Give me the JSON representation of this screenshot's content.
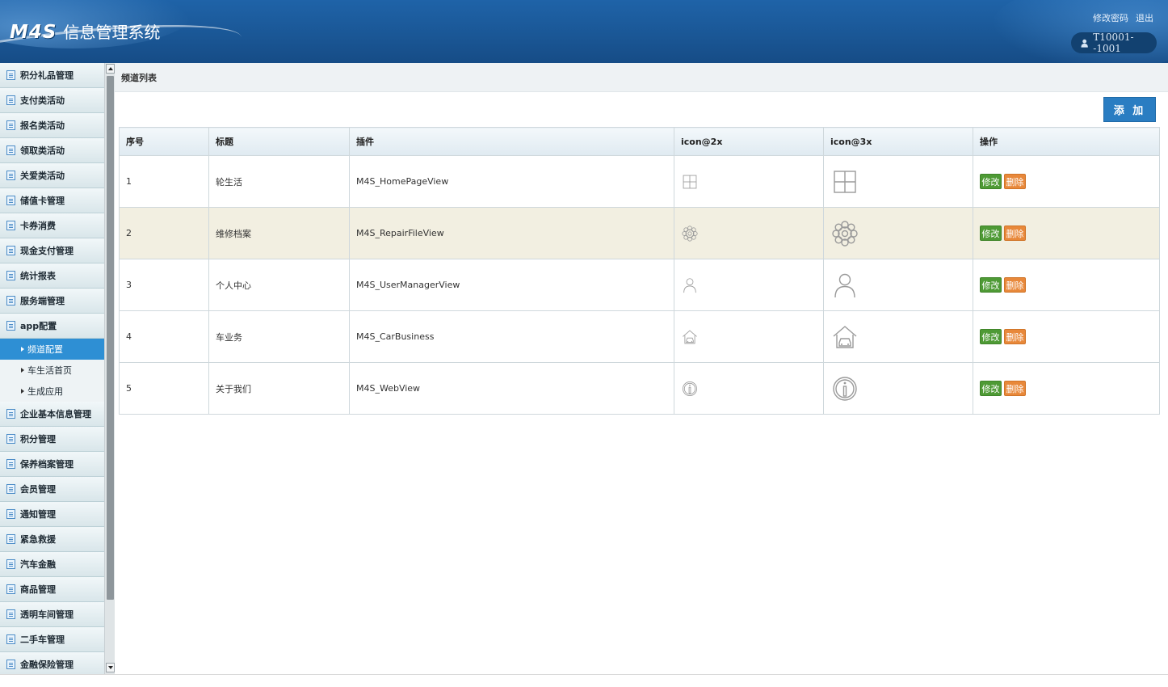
{
  "header": {
    "logo_brand": "M4S",
    "logo_title": "信息管理系统",
    "change_password": "修改密码",
    "logout": "退出",
    "user": "T10001--1001"
  },
  "sidebar": {
    "items_top": [
      {
        "label": "积分礼品管理"
      },
      {
        "label": "支付类活动"
      },
      {
        "label": "报名类活动"
      },
      {
        "label": "领取类活动"
      },
      {
        "label": "关爱类活动"
      },
      {
        "label": "储值卡管理"
      },
      {
        "label": "卡券消费"
      },
      {
        "label": "现金支付管理"
      },
      {
        "label": "统计报表"
      },
      {
        "label": "服务端管理"
      },
      {
        "label": "app配置"
      }
    ],
    "sub_items": [
      {
        "label": "频道配置",
        "active": true
      },
      {
        "label": "车生活首页",
        "active": false
      },
      {
        "label": "生成应用",
        "active": false
      }
    ],
    "items_bottom": [
      {
        "label": "企业基本信息管理"
      },
      {
        "label": "积分管理"
      },
      {
        "label": "保养档案管理"
      },
      {
        "label": "会员管理"
      },
      {
        "label": "通知管理"
      },
      {
        "label": "紧急救援"
      },
      {
        "label": "汽车金融"
      },
      {
        "label": "商品管理"
      },
      {
        "label": "透明车间管理"
      },
      {
        "label": "二手车管理"
      },
      {
        "label": "金融保险管理"
      }
    ]
  },
  "main": {
    "breadcrumb": "频道列表",
    "add_label": "添 加",
    "table": {
      "columns": [
        "序号",
        "标题",
        "插件",
        "icon@2x",
        "icon@3x",
        "操作"
      ],
      "rows": [
        {
          "index": "1",
          "title": "轮生活",
          "plugin": "M4S_HomePageView",
          "icon": "grid-icon",
          "highlight": false
        },
        {
          "index": "2",
          "title": "维修档案",
          "plugin": "M4S_RepairFileView",
          "icon": "gear-icon",
          "highlight": true
        },
        {
          "index": "3",
          "title": "个人中心",
          "plugin": "M4S_UserManagerView",
          "icon": "person-icon",
          "highlight": false
        },
        {
          "index": "4",
          "title": "车业务",
          "plugin": "M4S_CarBusiness",
          "icon": "car-house-icon",
          "highlight": false
        },
        {
          "index": "5",
          "title": "关于我们",
          "plugin": "M4S_WebView",
          "icon": "info-icon",
          "highlight": false
        }
      ],
      "edit_label": "修改",
      "delete_label": "删除"
    }
  },
  "colors": {
    "header_blue": "#1a5796",
    "active_menu": "#2e8fd4",
    "add_button": "#2a7dc2",
    "edit_button": "#4e9a35",
    "delete_button": "#e8883a",
    "highlight_row": "#f2efe1"
  }
}
